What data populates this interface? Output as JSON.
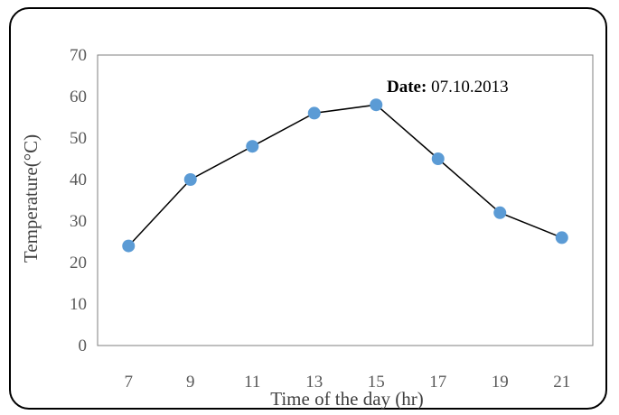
{
  "chart_data": {
    "type": "line",
    "title": "",
    "xlabel": "Time of the day (hr)",
    "ylabel": "Temperature(°C)",
    "categories": [
      "7",
      "9",
      "11",
      "13",
      "15",
      "17",
      "19",
      "21"
    ],
    "series": [
      {
        "values": [
          24,
          40,
          48,
          56,
          58,
          45,
          32,
          26
        ]
      }
    ],
    "ylim": [
      0,
      70
    ],
    "yticks": [
      "0",
      "10",
      "20",
      "30",
      "40",
      "50",
      "60",
      "70"
    ],
    "annotation": {
      "label": "Date:",
      "value": " 07.10.2013"
    },
    "grid": false,
    "legend": "none",
    "colors": {
      "marker": "#5b9bd5",
      "line": "#000000",
      "axis": "#7f7f7f"
    }
  }
}
